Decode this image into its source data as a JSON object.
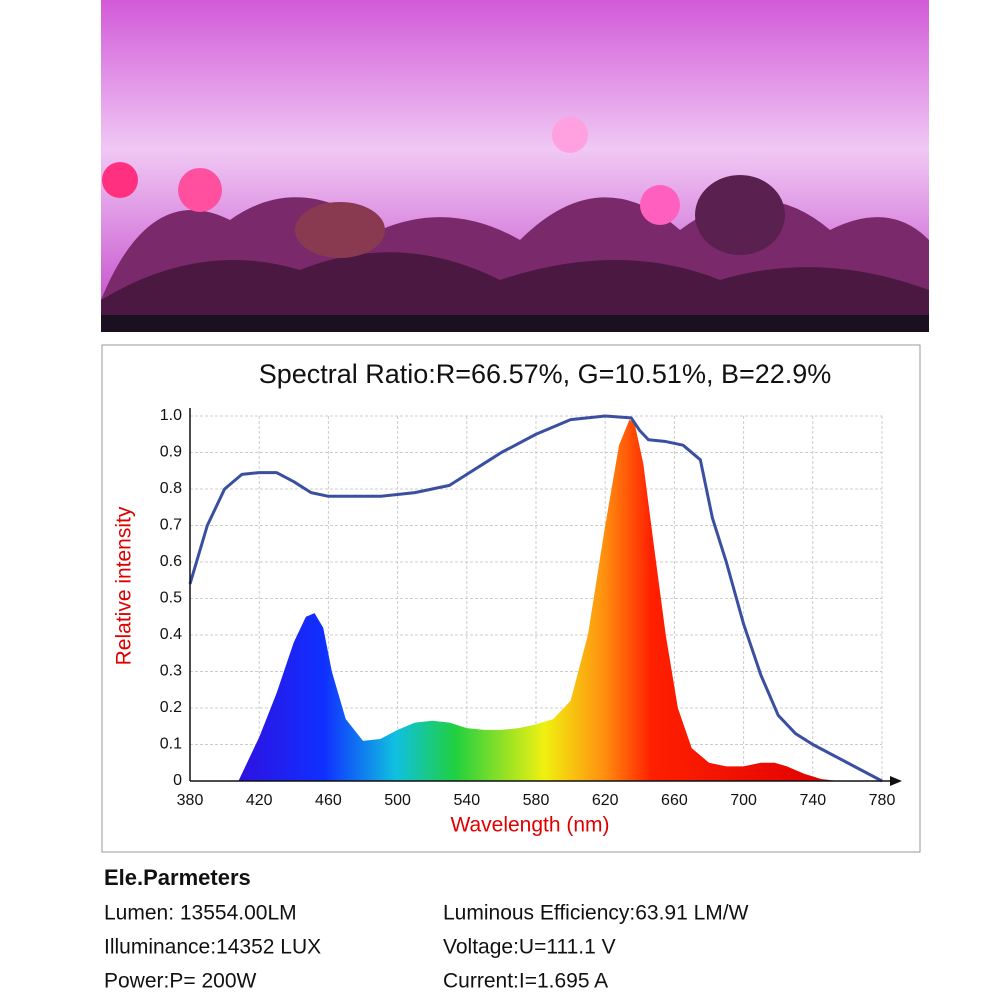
{
  "chart_data": {
    "type": "spectrum",
    "title": "Spectral Ratio:R=66.57%, G=10.51%, B=22.9%",
    "x_label": "Wavelength (nm)",
    "y_label": "Relative intensity",
    "xlim": [
      380,
      780
    ],
    "xticks": [
      380,
      420,
      460,
      500,
      540,
      580,
      620,
      660,
      700,
      740,
      780
    ],
    "ylim": [
      0,
      1
    ],
    "yticks": [
      0,
      0.1,
      0.2,
      0.3,
      0.4,
      0.5,
      0.6,
      0.7,
      0.8,
      0.9,
      {
        "value": 1,
        "label": "1.0"
      }
    ],
    "grid": true,
    "series": [
      {
        "kind": "area",
        "color": "spectral",
        "x": [
          408,
          420,
          430,
          440,
          447,
          452,
          457,
          462,
          470,
          480,
          490,
          500,
          510,
          520,
          530,
          540,
          550,
          560,
          570,
          580,
          590,
          600,
          610,
          620,
          628,
          634,
          637,
          642,
          648,
          655,
          662,
          670,
          680,
          690,
          700,
          710,
          718,
          725,
          735,
          745,
          755
        ],
        "values": [
          0,
          0.12,
          0.24,
          0.38,
          0.45,
          0.46,
          0.42,
          0.3,
          0.17,
          0.11,
          0.115,
          0.14,
          0.16,
          0.165,
          0.16,
          0.145,
          0.14,
          0.14,
          0.145,
          0.155,
          0.17,
          0.22,
          0.4,
          0.7,
          0.92,
          0.99,
          0.98,
          0.87,
          0.65,
          0.4,
          0.2,
          0.09,
          0.05,
          0.04,
          0.04,
          0.05,
          0.05,
          0.04,
          0.02,
          0.005,
          0
        ]
      },
      {
        "kind": "line",
        "color": "#3a4fa0",
        "x": [
          380,
          390,
          400,
          410,
          420,
          430,
          440,
          450,
          460,
          470,
          490,
          510,
          530,
          540,
          550,
          560,
          580,
          600,
          620,
          635,
          640,
          645,
          655,
          665,
          675,
          682,
          690,
          700,
          710,
          720,
          730,
          740,
          760,
          780
        ],
        "values": [
          0.54,
          0.7,
          0.8,
          0.84,
          0.845,
          0.845,
          0.82,
          0.79,
          0.78,
          0.78,
          0.78,
          0.79,
          0.81,
          0.84,
          0.87,
          0.9,
          0.95,
          0.99,
          1.0,
          0.995,
          0.96,
          0.935,
          0.93,
          0.92,
          0.88,
          0.72,
          0.6,
          0.43,
          0.29,
          0.18,
          0.13,
          0.1,
          0.05,
          0
        ]
      }
    ]
  },
  "parameters": {
    "heading": "Ele.Parmeters",
    "rows": [
      [
        "Lumen: 13554.00LM",
        "Luminous Efficiency:63.91 LM/W"
      ],
      [
        "Illuminance:14352 LUX",
        "Voltage:U=111.1 V"
      ],
      [
        "Power:P= 200W",
        "Current:I=1.695 A"
      ]
    ]
  }
}
